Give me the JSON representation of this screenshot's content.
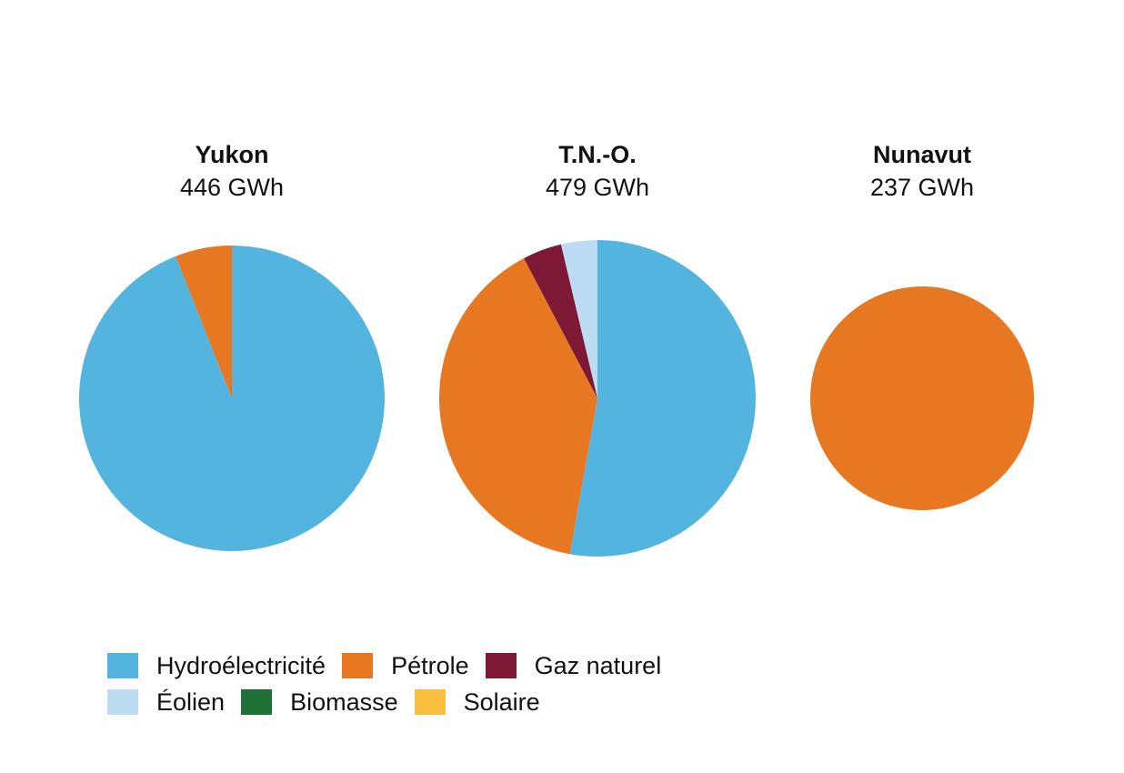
{
  "charts": [
    {
      "name": "Yukon",
      "total": "446 GWh"
    },
    {
      "name": "T.N.-O.",
      "total": "479 GWh"
    },
    {
      "name": "Nunavut",
      "total": "237 GWh"
    }
  ],
  "legend": [
    {
      "label": "Hydroélectricité",
      "color": "#53b4e0"
    },
    {
      "label": "Pétrole",
      "color": "#e87722"
    },
    {
      "label": "Gaz naturel",
      "color": "#7d1935"
    },
    {
      "label": "Éolien",
      "color": "#bcdcf4"
    },
    {
      "label": "Biomasse",
      "color": "#1e7034"
    },
    {
      "label": "Solaire",
      "color": "#fbbf40"
    }
  ],
  "chart_data": [
    {
      "type": "pie",
      "title": "Yukon",
      "subtitle": "446 GWh",
      "categories": [
        "Hydroélectricité",
        "Pétrole",
        "Gaz naturel",
        "Éolien",
        "Biomasse",
        "Solaire"
      ],
      "values": [
        94,
        6,
        0,
        0,
        0,
        0
      ],
      "unit": "%"
    },
    {
      "type": "pie",
      "title": "T.N.-O.",
      "subtitle": "479 GWh",
      "categories": [
        "Hydroélectricité",
        "Pétrole",
        "Gaz naturel",
        "Éolien",
        "Biomasse",
        "Solaire"
      ],
      "values": [
        52.8,
        39.5,
        4.0,
        3.7,
        0,
        0
      ],
      "unit": "%"
    },
    {
      "type": "pie",
      "title": "Nunavut",
      "subtitle": "237 GWh",
      "categories": [
        "Hydroélectricité",
        "Pétrole",
        "Gaz naturel",
        "Éolien",
        "Biomasse",
        "Solaire"
      ],
      "values": [
        0,
        100,
        0,
        0,
        0,
        0
      ],
      "unit": "%"
    }
  ]
}
